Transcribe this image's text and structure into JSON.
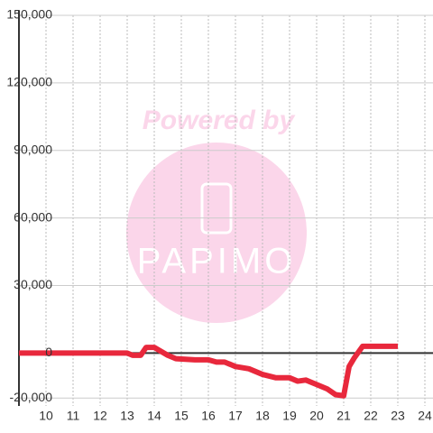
{
  "chart_data": {
    "type": "line",
    "watermark": {
      "top": "Powered by",
      "bottom": "PAPIMO"
    },
    "x": [
      9,
      13,
      13.2,
      13.5,
      13.7,
      14,
      14.5,
      14.8,
      15.5,
      16,
      16.3,
      16.6,
      17,
      17.5,
      18,
      18.5,
      19,
      19.3,
      19.6,
      20,
      20.4,
      20.7,
      21,
      21.2,
      21.4,
      21.7,
      23
    ],
    "series": [
      {
        "color": "#e8283c",
        "values": [
          0,
          0,
          -1000,
          -1000,
          2500,
          2500,
          -1000,
          -2500,
          -3000,
          -3000,
          -4000,
          -4000,
          -6000,
          -7000,
          -9500,
          -11000,
          -11000,
          -12500,
          -12000,
          -14000,
          -16000,
          -18500,
          -19000,
          -6000,
          -2000,
          3000,
          3000
        ]
      }
    ],
    "xlim": [
      9,
      24.3
    ],
    "xticks": [
      10,
      11,
      12,
      13,
      14,
      15,
      16,
      17,
      18,
      19,
      20,
      21,
      22,
      23,
      24
    ],
    "ylim": [
      -23500,
      150000
    ],
    "yticks": [
      {
        "value": -20000,
        "label": "-20,000"
      },
      0,
      {
        "value": 30000,
        "label": "30,000"
      },
      {
        "value": 60000,
        "label": "60,000"
      },
      {
        "value": 90000,
        "label": "90,000"
      },
      {
        "value": 120000,
        "label": "120,000"
      },
      {
        "value": 150000,
        "label": "150,000"
      }
    ],
    "grid": true
  }
}
